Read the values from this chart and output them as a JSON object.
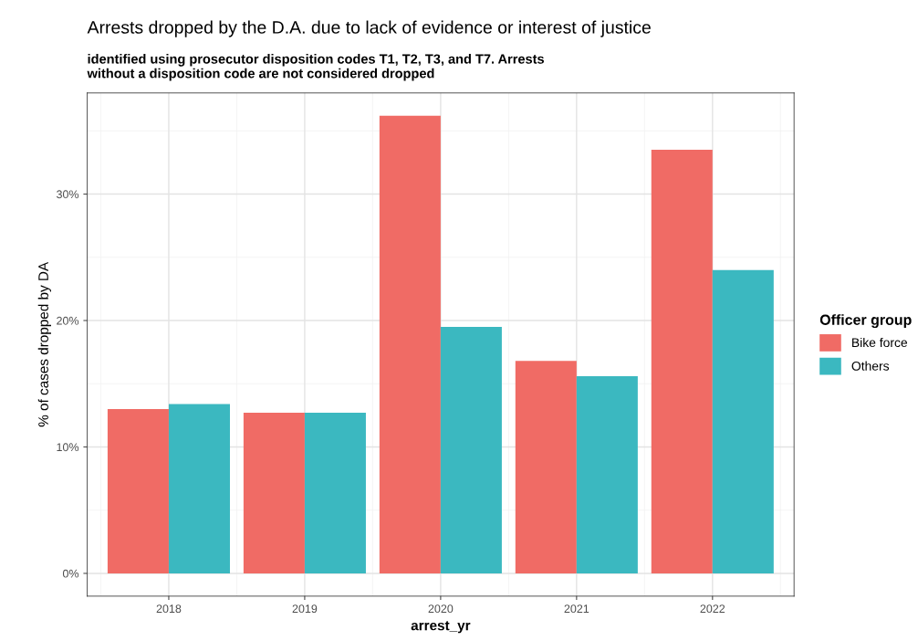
{
  "chart_data": {
    "type": "bar",
    "title": "Arrests dropped by the D.A. due to lack of evidence or interest of justice",
    "subtitle": "identified using prosecutor disposition codes T1, T2, T3, and T7. Arrests\nwithout a disposition code are not considered dropped",
    "xlabel": "arrest_yr",
    "ylabel": "% of cases dropped by DA",
    "legend_title": "Officer group",
    "categories": [
      "2018",
      "2019",
      "2020",
      "2021",
      "2022"
    ],
    "series": [
      {
        "name": "Bike force",
        "color": "#f06b65",
        "values": [
          13.0,
          12.7,
          36.2,
          16.8,
          33.5
        ]
      },
      {
        "name": "Others",
        "color": "#3bb8c0",
        "values": [
          13.4,
          12.7,
          19.5,
          15.6,
          24.0
        ]
      }
    ],
    "ylim": [
      -1.8,
      38.0
    ],
    "yticks": [
      {
        "value": 0,
        "label": "0%"
      },
      {
        "value": 10,
        "label": "10%"
      },
      {
        "value": 20,
        "label": "20%"
      },
      {
        "value": 30,
        "label": "30%"
      }
    ],
    "grid": true,
    "legend": "right"
  }
}
